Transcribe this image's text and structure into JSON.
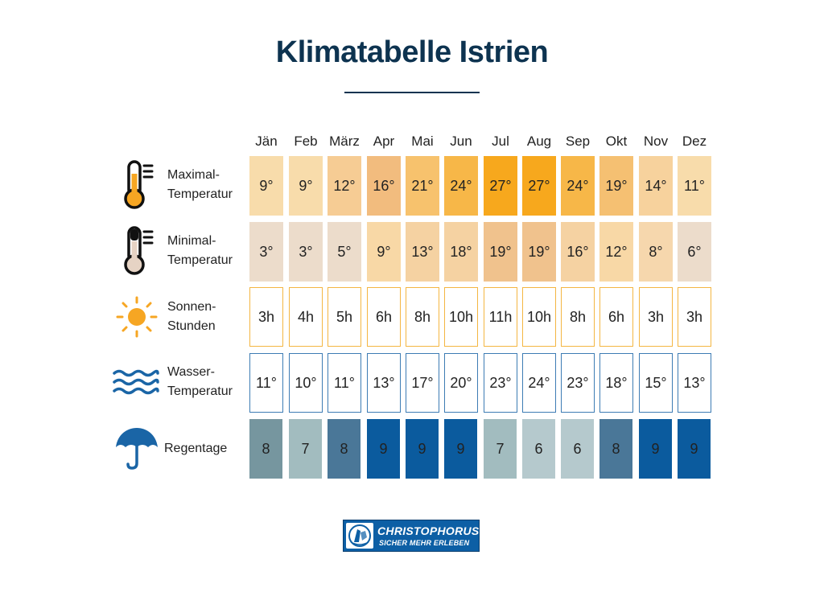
{
  "title": "Klimatabelle Istrien",
  "months": [
    "Jän",
    "Feb",
    "März",
    "Apr",
    "Mai",
    "Jun",
    "Jul",
    "Aug",
    "Sep",
    "Okt",
    "Nov",
    "Dez"
  ],
  "rows": [
    {
      "label_lines": [
        "Maximal-",
        "Temperatur"
      ],
      "icon": "thermometer-hot-icon"
    },
    {
      "label_lines": [
        "Minimal-",
        "Temperatur"
      ],
      "icon": "thermometer-cold-icon"
    },
    {
      "label_lines": [
        "Sonnen-",
        "Stunden"
      ],
      "icon": "sun-icon"
    },
    {
      "label_lines": [
        "Wasser-",
        "Temperatur"
      ],
      "icon": "waves-icon"
    },
    {
      "label_lines": [
        "Regentage"
      ],
      "icon": "umbrella-icon"
    }
  ],
  "colors": {
    "title": "#0d3350",
    "max_temp": [
      "#f8dcab",
      "#f8dcab",
      "#f6cc94",
      "#f2bc7e",
      "#f7c26d",
      "#f7b748",
      "#f7a81d",
      "#f7a81d",
      "#f7b748",
      "#f5c072",
      "#f7d29d",
      "#f8dcab"
    ],
    "min_temp": [
      "#ecdccb",
      "#ecdccb",
      "#ecdccb",
      "#f8d8a6",
      "#f5d2a2",
      "#f5d2a2",
      "#f0c28d",
      "#f0c28d",
      "#f5d2a2",
      "#f8d8a6",
      "#f6d7ad",
      "#ecdccb"
    ],
    "sun_border": "#f4b642",
    "water_border": "#3d7cb4",
    "rain": [
      "#76969f",
      "#a2bcbf",
      "#4a7798",
      "#0b5b9e",
      "#0b5b9e",
      "#0b5b9e",
      "#a2bcbf",
      "#b5c9cd",
      "#b5c9cd",
      "#4a7798",
      "#0b5b9e",
      "#0b5b9e"
    ]
  },
  "chart_data": {
    "type": "table",
    "title": "Klimatabelle Istrien",
    "categories": [
      "Jän",
      "Feb",
      "März",
      "Apr",
      "Mai",
      "Jun",
      "Jul",
      "Aug",
      "Sep",
      "Okt",
      "Nov",
      "Dez"
    ],
    "series": [
      {
        "name": "Maximal-Temperatur",
        "values": [
          9,
          9,
          12,
          16,
          21,
          24,
          27,
          27,
          24,
          19,
          14,
          11
        ],
        "unit": "°"
      },
      {
        "name": "Minimal-Temperatur",
        "values": [
          3,
          3,
          5,
          9,
          13,
          18,
          19,
          19,
          16,
          12,
          8,
          6
        ],
        "unit": "°"
      },
      {
        "name": "Sonnen-Stunden",
        "values": [
          3,
          4,
          5,
          6,
          8,
          10,
          11,
          10,
          8,
          6,
          3,
          3
        ],
        "unit": "h"
      },
      {
        "name": "Wasser-Temperatur",
        "values": [
          11,
          10,
          11,
          13,
          17,
          20,
          23,
          24,
          23,
          18,
          15,
          13
        ],
        "unit": "°"
      },
      {
        "name": "Regentage",
        "values": [
          8,
          7,
          8,
          9,
          9,
          9,
          7,
          6,
          6,
          8,
          9,
          9
        ],
        "unit": ""
      }
    ]
  },
  "logo": {
    "name": "CHRISTOPHORUS",
    "tagline": "SICHER MEHR ERLEBEN"
  }
}
